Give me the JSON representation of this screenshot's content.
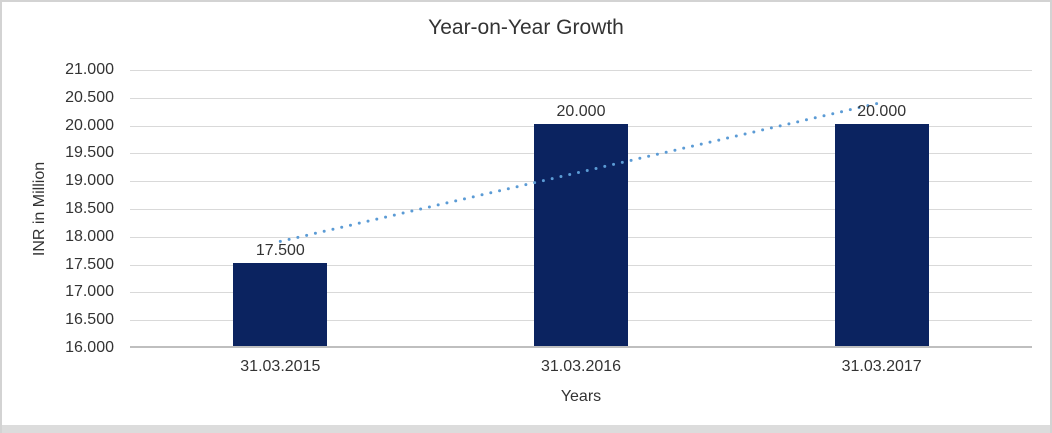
{
  "chart_data": {
    "type": "bar",
    "title": "Year-on-Year Growth",
    "xlabel": "Years",
    "ylabel": "INR in Million",
    "categories": [
      "31.03.2015",
      "31.03.2016",
      "31.03.2017"
    ],
    "values": [
      17500,
      20000,
      20000
    ],
    "data_labels": [
      "17.500",
      "20.000",
      "20.000"
    ],
    "ylim": [
      16000,
      21000
    ],
    "ytick_step": 500,
    "ytick_labels": [
      "21.000",
      "20.500",
      "20.000",
      "19.500",
      "19.000",
      "18.500",
      "18.000",
      "17.500",
      "17.000",
      "16.500",
      "16.000"
    ],
    "grid": "horizontal",
    "legend": "none",
    "colors": {
      "bar": "#0b2360",
      "trendline": "#5b9bd5",
      "gridline": "#d9d9d9",
      "axis_line": "#bfbfbf",
      "text": "#333333"
    },
    "trendline": {
      "type": "linear",
      "style": "dotted",
      "start_value": 17917,
      "end_value": 20417
    }
  }
}
